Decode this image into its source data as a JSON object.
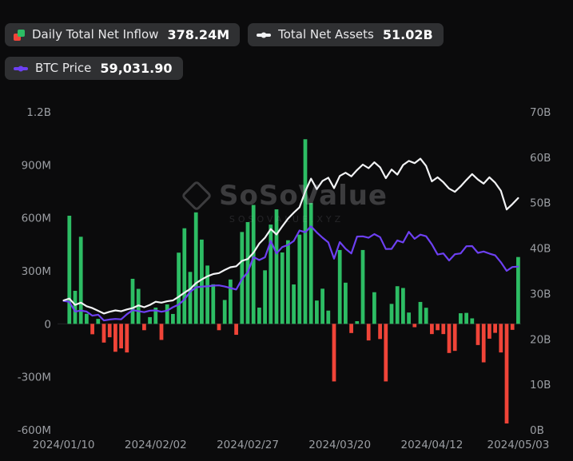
{
  "legend": {
    "inflow": {
      "label": "Daily Total Net Inflow",
      "value": "378.24M"
    },
    "assets": {
      "label": "Total Net Assets",
      "value": "51.02B"
    },
    "btc": {
      "label": "BTC Price",
      "value": "59,031.90"
    }
  },
  "watermark": {
    "brand": "SoSoValue",
    "domain": "SOSOVALUE.XYZ"
  },
  "colors": {
    "green": "#2dbd64",
    "red": "#f04438",
    "white_line": "#f2f3f5",
    "purple_line": "#6d40f2",
    "axis_text": "#9b9ea3",
    "background": "#0b0b0c",
    "chip_bg": "#2f3032"
  },
  "chart_data": {
    "type": "bar",
    "subtype": "bar+line combo, dark theme, no gridlines",
    "x": [
      "2024/01/10",
      "2024/01/11",
      "2024/01/12",
      "2024/01/16",
      "2024/01/17",
      "2024/01/18",
      "2024/01/19",
      "2024/01/22",
      "2024/01/23",
      "2024/01/24",
      "2024/01/25",
      "2024/01/26",
      "2024/01/29",
      "2024/01/30",
      "2024/01/31",
      "2024/02/01",
      "2024/02/02",
      "2024/02/05",
      "2024/02/06",
      "2024/02/07",
      "2024/02/08",
      "2024/02/09",
      "2024/02/12",
      "2024/02/13",
      "2024/02/14",
      "2024/02/15",
      "2024/02/16",
      "2024/02/20",
      "2024/02/21",
      "2024/02/22",
      "2024/02/23",
      "2024/02/26",
      "2024/02/27",
      "2024/02/28",
      "2024/02/29",
      "2024/03/01",
      "2024/03/04",
      "2024/03/05",
      "2024/03/06",
      "2024/03/07",
      "2024/03/08",
      "2024/03/11",
      "2024/03/12",
      "2024/03/13",
      "2024/03/14",
      "2024/03/15",
      "2024/03/18",
      "2024/03/19",
      "2024/03/20",
      "2024/03/21",
      "2024/03/22",
      "2024/03/25",
      "2024/03/26",
      "2024/03/27",
      "2024/03/28",
      "2024/04/01",
      "2024/04/02",
      "2024/04/03",
      "2024/04/04",
      "2024/04/05",
      "2024/04/08",
      "2024/04/09",
      "2024/04/10",
      "2024/04/11",
      "2024/04/12",
      "2024/04/15",
      "2024/04/16",
      "2024/04/17",
      "2024/04/18",
      "2024/04/19",
      "2024/04/22",
      "2024/04/23",
      "2024/04/24",
      "2024/04/25",
      "2024/04/26",
      "2024/04/29",
      "2024/04/30",
      "2024/05/01",
      "2024/05/02",
      "2024/05/03"
    ],
    "x_tick_indices": [
      0,
      16,
      32,
      48,
      64,
      79
    ],
    "x_tick_labels": [
      "2024/01/10",
      "2024/02/02",
      "2024/02/27",
      "2024/03/20",
      "2024/04/12",
      "2024/05/03"
    ],
    "series": [
      {
        "name": "Daily Total Net Inflow",
        "type": "bar",
        "unit": "M USD",
        "axis": "left",
        "positive_color": "#2dbd64",
        "negative_color": "#f04438",
        "values": [
          0,
          612,
          187,
          493,
          57,
          -59,
          28,
          -106,
          -76,
          -158,
          -139,
          -162,
          255,
          198,
          -36,
          38,
          92,
          -91,
          110,
          56,
          403,
          541,
          294,
          631,
          477,
          330,
          224,
          -36,
          135,
          251,
          -62,
          520,
          576,
          673,
          92,
          303,
          562,
          648,
          404,
          473,
          223,
          505,
          1045,
          684,
          132,
          199,
          75,
          -326,
          418,
          233,
          -52,
          15,
          418,
          -94,
          179,
          -86,
          -326,
          113,
          213,
          203,
          64,
          -19,
          124,
          91,
          -58,
          -36,
          -58,
          -165,
          -153,
          60,
          62,
          31,
          -120,
          -218,
          -84,
          -51,
          -162,
          -564,
          -34,
          378.24
        ]
      },
      {
        "name": "Total Net Assets",
        "type": "line",
        "unit": "B USD",
        "axis": "right",
        "color": "#f2f3f5",
        "values": [
          28.5,
          28.9,
          27.5,
          28.0,
          27.2,
          26.8,
          26.2,
          25.6,
          26.0,
          26.3,
          26.1,
          26.5,
          26.8,
          27.4,
          27.0,
          27.5,
          28.2,
          28.0,
          28.3,
          28.5,
          29.3,
          30.2,
          31.0,
          32.3,
          33.1,
          33.8,
          34.3,
          34.5,
          35.2,
          35.8,
          36.0,
          37.2,
          37.6,
          39.0,
          41.0,
          42.3,
          44.2,
          43.0,
          44.8,
          46.5,
          47.8,
          49.0,
          52.5,
          55.3,
          53.0,
          54.8,
          55.5,
          53.2,
          55.9,
          56.6,
          55.8,
          57.2,
          58.4,
          57.6,
          58.9,
          57.8,
          55.4,
          57.3,
          56.2,
          58.3,
          59.2,
          58.7,
          59.7,
          58.1,
          54.7,
          55.6,
          54.5,
          53.1,
          52.4,
          53.6,
          55.0,
          56.3,
          55.1,
          54.2,
          55.6,
          54.4,
          52.6,
          48.5,
          49.7,
          51.02
        ]
      },
      {
        "name": "BTC Price",
        "type": "line",
        "unit": "USD",
        "axis": "hidden",
        "color": "#6d40f2",
        "values": [
          46650,
          46300,
          42800,
          43150,
          42750,
          41300,
          41650,
          39550,
          39900,
          40100,
          39950,
          41800,
          43300,
          42950,
          42550,
          43100,
          43200,
          42700,
          43100,
          44350,
          45300,
          47150,
          49950,
          51550,
          51800,
          51900,
          52150,
          52250,
          51850,
          51300,
          50750,
          54500,
          57050,
          62500,
          61400,
          62400,
          68300,
          63800,
          66100,
          66850,
          68300,
          72100,
          71450,
          73600,
          71400,
          69500,
          67800,
          61900,
          67900,
          65500,
          63800,
          69900,
          69980,
          69450,
          70800,
          69700,
          65400,
          65450,
          68500,
          67800,
          71600,
          69100,
          70600,
          70000,
          67100,
          63400,
          63800,
          61250,
          63500,
          63800,
          66400,
          66450,
          64000,
          64500,
          63750,
          63100,
          60600,
          57500,
          58900,
          59031.9
        ]
      }
    ],
    "left_axis": {
      "min": -600,
      "max": 1200,
      "ticks": [
        1200,
        900,
        600,
        300,
        0,
        -300,
        -600
      ],
      "tick_labels": [
        "1.2B",
        "900M",
        "600M",
        "300M",
        "0",
        "-300M",
        "-600M"
      ]
    },
    "right_axis": {
      "min": 0,
      "max": 70,
      "ticks": [
        70,
        60,
        50,
        40,
        30,
        20,
        10,
        0
      ],
      "tick_labels": [
        "70B",
        "60B",
        "50B",
        "40B",
        "30B",
        "20B",
        "10B",
        "0B"
      ]
    },
    "btc_axis": {
      "min": 0,
      "max": 115000
    },
    "legend_position": "top-left",
    "grid": false
  }
}
